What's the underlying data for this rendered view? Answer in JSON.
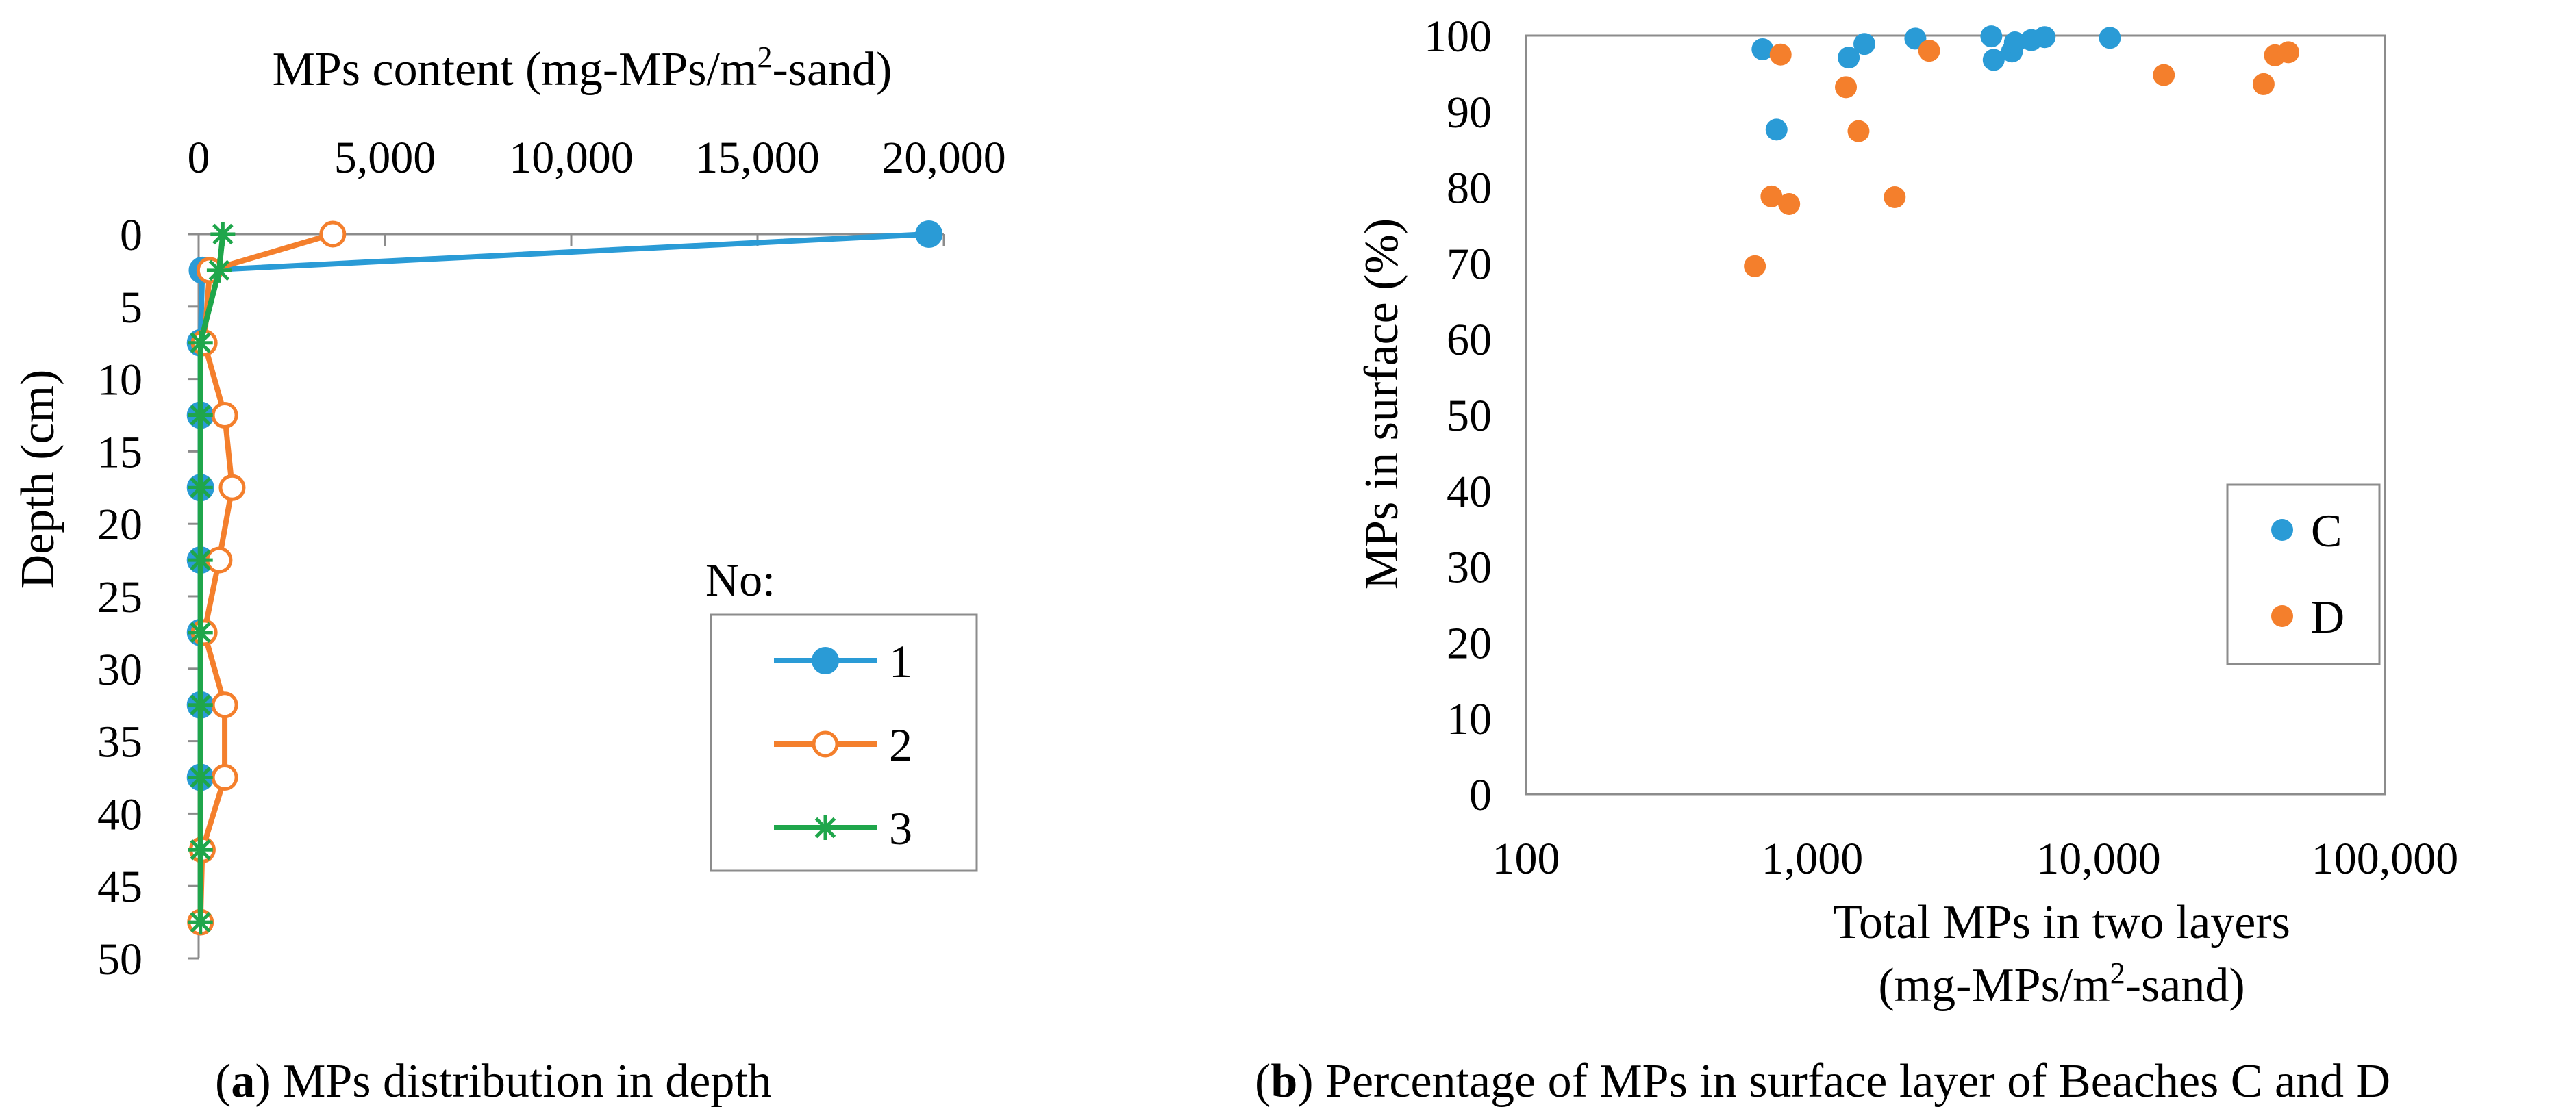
{
  "colors": {
    "series1": "#2a9bd6",
    "series2": "#f47f2c",
    "series3": "#1fa64b",
    "C": "#2a9bd6",
    "D": "#f47f2c",
    "axis": "#8c8c8c",
    "text": "#000000"
  },
  "panel_a": {
    "caption_label": "a",
    "caption_text": ") MPs distribution in depth",
    "caption_paren": "(",
    "legend_title": "No:",
    "x_title_prefix": "MPs content (mg-MPs/m",
    "x_title_sup": "2",
    "x_title_suffix": "-sand)",
    "y_title": "Depth (cm)"
  },
  "panel_b": {
    "caption_label": "b",
    "caption_text": ") Percentage of MPs in surface layer of Beaches C and D",
    "caption_paren": "(",
    "x_title_line1": "Total MPs in two layers",
    "x_title_line2_prefix": "(mg-MPs/m",
    "x_title_line2_sup": "2",
    "x_title_line2_suffix": "-sand)",
    "y_title": "MPs in surface (%)"
  },
  "chart_data": [
    {
      "type": "line",
      "orientation": "depth-profile",
      "title": "MPs distribution in depth",
      "xlabel": "MPs content (mg-MPs/m2-sand)",
      "ylabel": "Depth (cm)",
      "xlim": [
        0,
        20000
      ],
      "ylim": [
        0,
        50
      ],
      "y_inverted": true,
      "x_ticks": [
        0,
        5000,
        10000,
        15000,
        20000
      ],
      "x_tick_labels": [
        "0",
        "5,000",
        "10,000",
        "15,000",
        "20,000"
      ],
      "y_ticks": [
        0,
        5,
        10,
        15,
        20,
        25,
        30,
        35,
        40,
        45,
        50
      ],
      "y_tick_labels": [
        "0",
        "5",
        "10",
        "15",
        "20",
        "25",
        "30",
        "35",
        "40",
        "45",
        "50"
      ],
      "legend_title": "No:",
      "legend_position": "right",
      "series": [
        {
          "name": "1",
          "marker": "filled-circle",
          "points": [
            {
              "x": 19600,
              "depth": 0
            },
            {
              "x": 100,
              "depth": 2.5
            },
            {
              "x": 50,
              "depth": 7.5
            },
            {
              "x": 50,
              "depth": 12.5
            },
            {
              "x": 50,
              "depth": 17.5
            },
            {
              "x": 50,
              "depth": 22.5
            },
            {
              "x": 50,
              "depth": 27.5
            },
            {
              "x": 50,
              "depth": 32.5
            },
            {
              "x": 50,
              "depth": 37.5
            }
          ]
        },
        {
          "name": "2",
          "marker": "open-circle",
          "points": [
            {
              "x": 3600,
              "depth": 0
            },
            {
              "x": 300,
              "depth": 2.5
            },
            {
              "x": 150,
              "depth": 7.5
            },
            {
              "x": 700,
              "depth": 12.5
            },
            {
              "x": 900,
              "depth": 17.5
            },
            {
              "x": 550,
              "depth": 22.5
            },
            {
              "x": 150,
              "depth": 27.5
            },
            {
              "x": 700,
              "depth": 32.5
            },
            {
              "x": 700,
              "depth": 37.5
            },
            {
              "x": 100,
              "depth": 42.5
            },
            {
              "x": 50,
              "depth": 47.5
            }
          ]
        },
        {
          "name": "3",
          "marker": "asterisk",
          "points": [
            {
              "x": 650,
              "depth": 0
            },
            {
              "x": 550,
              "depth": 2.5
            },
            {
              "x": 50,
              "depth": 7.5
            },
            {
              "x": 50,
              "depth": 12.5
            },
            {
              "x": 50,
              "depth": 17.5
            },
            {
              "x": 50,
              "depth": 22.5
            },
            {
              "x": 50,
              "depth": 27.5
            },
            {
              "x": 50,
              "depth": 32.5
            },
            {
              "x": 50,
              "depth": 37.5
            },
            {
              "x": 50,
              "depth": 42.5
            },
            {
              "x": 50,
              "depth": 47.5
            }
          ]
        }
      ]
    },
    {
      "type": "scatter",
      "title": "Percentage of MPs in surface layer of Beaches C and D",
      "xlabel": "Total MPs in two layers (mg-MPs/m2-sand)",
      "ylabel": "MPs in surface (%)",
      "x_scale": "log",
      "xlim": [
        100,
        100000
      ],
      "ylim": [
        0,
        100
      ],
      "x_ticks": [
        100,
        1000,
        10000,
        100000
      ],
      "x_tick_labels": [
        "100",
        "1,000",
        "10,000",
        "100,000"
      ],
      "y_ticks": [
        0,
        10,
        20,
        30,
        40,
        50,
        60,
        70,
        80,
        90,
        100
      ],
      "y_tick_labels": [
        "0",
        "10",
        "20",
        "30",
        "40",
        "50",
        "60",
        "70",
        "80",
        "90",
        "100"
      ],
      "legend_position": "right",
      "series": [
        {
          "name": "C",
          "points": [
            {
              "x": 670,
              "y": 98.2
            },
            {
              "x": 750,
              "y": 87.6
            },
            {
              "x": 1340,
              "y": 97.1
            },
            {
              "x": 1520,
              "y": 98.9
            },
            {
              "x": 2290,
              "y": 99.6
            },
            {
              "x": 4220,
              "y": 99.9
            },
            {
              "x": 4300,
              "y": 96.8
            },
            {
              "x": 4980,
              "y": 97.9
            },
            {
              "x": 5100,
              "y": 99.1
            },
            {
              "x": 5820,
              "y": 99.4
            },
            {
              "x": 6480,
              "y": 99.8
            },
            {
              "x": 10950,
              "y": 99.7
            }
          ]
        },
        {
          "name": "D",
          "points": [
            {
              "x": 630,
              "y": 69.6
            },
            {
              "x": 720,
              "y": 78.8
            },
            {
              "x": 775,
              "y": 97.5
            },
            {
              "x": 830,
              "y": 77.8
            },
            {
              "x": 1310,
              "y": 93.2
            },
            {
              "x": 1450,
              "y": 87.4
            },
            {
              "x": 1940,
              "y": 78.7
            },
            {
              "x": 2560,
              "y": 98.0
            },
            {
              "x": 16900,
              "y": 94.8
            },
            {
              "x": 37700,
              "y": 93.6
            },
            {
              "x": 41300,
              "y": 97.4
            },
            {
              "x": 46000,
              "y": 97.8
            }
          ]
        }
      ]
    }
  ]
}
